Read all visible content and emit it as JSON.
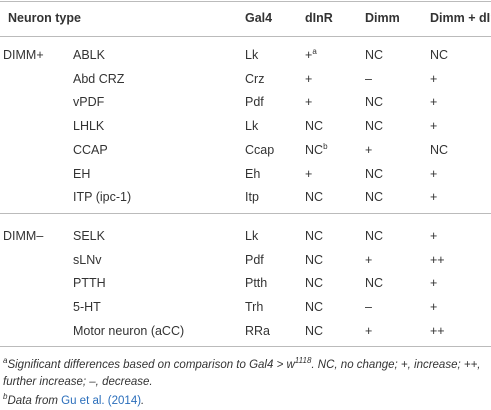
{
  "table": {
    "header": [
      "Neuron type",
      "Gal4",
      "dInR",
      "Dimm",
      "Dimm + dInR"
    ],
    "groups": [
      {
        "label": "DIMM+",
        "rows": [
          [
            "ABLK",
            "Lk",
            {
              "text": "+",
              "sup": "a"
            },
            "NC",
            "NC"
          ],
          [
            "Abd CRZ",
            "Crz",
            "+",
            "–",
            "+"
          ],
          [
            "vPDF",
            "Pdf",
            "+",
            "NC",
            "+"
          ],
          [
            "LHLK",
            "Lk",
            "NC",
            "NC",
            "+"
          ],
          [
            "CCAP",
            "Ccap",
            {
              "text": "NC",
              "sup": "b"
            },
            "+",
            "NC"
          ],
          [
            "EH",
            "Eh",
            "+",
            "NC",
            "+"
          ],
          [
            "ITP (ipc-1)",
            "Itp",
            "NC",
            "NC",
            "+"
          ]
        ]
      },
      {
        "label": "DIMM–",
        "rows": [
          [
            "SELK",
            "Lk",
            "NC",
            "NC",
            "+"
          ],
          [
            "sLNv",
            "Pdf",
            "NC",
            "+",
            "++"
          ],
          [
            "PTTH",
            "Ptth",
            "NC",
            "NC",
            "+"
          ],
          [
            "5-HT",
            "Trh",
            "NC",
            "–",
            "+"
          ],
          [
            "Motor neuron (aCC)",
            "RRa",
            "NC",
            "+",
            "++"
          ]
        ]
      }
    ],
    "footnotes": [
      {
        "marker": "a",
        "parts": [
          "Significant differences based on comparison to Gal4 > w",
          {
            "sup": "1118"
          },
          ". NC, no change; +, increase; ++, further increase; –, decrease."
        ]
      },
      {
        "marker": "b",
        "parts": [
          "Data from ",
          {
            "link": "Gu et al. (2014)"
          },
          "."
        ]
      }
    ]
  }
}
